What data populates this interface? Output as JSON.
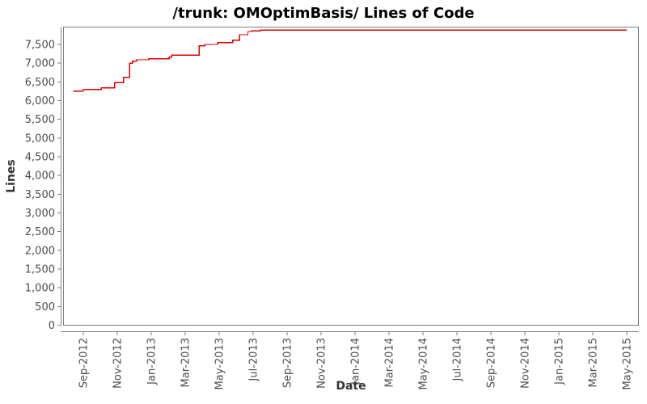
{
  "page": {
    "title": "/trunk: OMOptimBasis/ Lines of Code"
  },
  "chart_data": {
    "type": "line",
    "style": "step-after",
    "title": "/trunk: OMOptimBasis/ Lines of Code",
    "xlabel": "Date",
    "ylabel": "Lines",
    "legend": "none",
    "grid": false,
    "ylim": [
      0,
      7975
    ],
    "xlim": [
      "2012-07-26",
      "2015-05-24"
    ],
    "colors": {
      "line": "#dd0000",
      "frame": "#7f7f7f",
      "tick_text": "#4d4d4d",
      "label_text": "#333333",
      "background": "#ffffff"
    },
    "y_ticks": [
      {
        "value": 0,
        "label": "0"
      },
      {
        "value": 500,
        "label": "500"
      },
      {
        "value": 1000,
        "label": "1,000"
      },
      {
        "value": 1500,
        "label": "1,500"
      },
      {
        "value": 2000,
        "label": "2,000"
      },
      {
        "value": 2500,
        "label": "2,500"
      },
      {
        "value": 3000,
        "label": "3,000"
      },
      {
        "value": 3500,
        "label": "3,500"
      },
      {
        "value": 4000,
        "label": "4,000"
      },
      {
        "value": 4500,
        "label": "4,500"
      },
      {
        "value": 5000,
        "label": "5,000"
      },
      {
        "value": 5500,
        "label": "5,500"
      },
      {
        "value": 6000,
        "label": "6,000"
      },
      {
        "value": 6500,
        "label": "6,500"
      },
      {
        "value": 7000,
        "label": "7,000"
      },
      {
        "value": 7500,
        "label": "7,500"
      }
    ],
    "x_ticks": [
      {
        "date": "2012-09-01",
        "label": "Sep-2012"
      },
      {
        "date": "2012-11-01",
        "label": "Nov-2012"
      },
      {
        "date": "2013-01-01",
        "label": "Jan-2013"
      },
      {
        "date": "2013-03-01",
        "label": "Mar-2013"
      },
      {
        "date": "2013-05-01",
        "label": "May-2013"
      },
      {
        "date": "2013-07-01",
        "label": "Jul-2013"
      },
      {
        "date": "2013-09-01",
        "label": "Sep-2013"
      },
      {
        "date": "2013-11-01",
        "label": "Nov-2013"
      },
      {
        "date": "2014-01-01",
        "label": "Jan-2014"
      },
      {
        "date": "2014-03-01",
        "label": "Mar-2014"
      },
      {
        "date": "2014-05-01",
        "label": "May-2014"
      },
      {
        "date": "2014-07-01",
        "label": "Jul-2014"
      },
      {
        "date": "2014-09-01",
        "label": "Sep-2014"
      },
      {
        "date": "2014-11-01",
        "label": "Nov-2014"
      },
      {
        "date": "2015-01-01",
        "label": "Jan-2015"
      },
      {
        "date": "2015-03-01",
        "label": "Mar-2015"
      },
      {
        "date": "2015-05-01",
        "label": "May-2015"
      }
    ],
    "series": [
      {
        "name": "Lines of Code",
        "points": [
          {
            "date": "2012-08-13",
            "value": 6250
          },
          {
            "date": "2012-09-01",
            "value": 6300
          },
          {
            "date": "2012-10-03",
            "value": 6340
          },
          {
            "date": "2012-10-27",
            "value": 6480
          },
          {
            "date": "2012-11-12",
            "value": 6620
          },
          {
            "date": "2012-11-23",
            "value": 7000
          },
          {
            "date": "2012-11-28",
            "value": 7050
          },
          {
            "date": "2012-12-05",
            "value": 7090
          },
          {
            "date": "2012-12-27",
            "value": 7120
          },
          {
            "date": "2013-02-03",
            "value": 7160
          },
          {
            "date": "2013-02-07",
            "value": 7210
          },
          {
            "date": "2013-03-26",
            "value": 7460
          },
          {
            "date": "2013-04-06",
            "value": 7500
          },
          {
            "date": "2013-04-29",
            "value": 7550
          },
          {
            "date": "2013-05-25",
            "value": 7610
          },
          {
            "date": "2013-06-07",
            "value": 7760
          },
          {
            "date": "2013-06-22",
            "value": 7845
          },
          {
            "date": "2013-06-29",
            "value": 7865
          },
          {
            "date": "2013-07-14",
            "value": 7880
          },
          {
            "date": "2015-05-01",
            "value": 7880
          }
        ]
      }
    ]
  }
}
